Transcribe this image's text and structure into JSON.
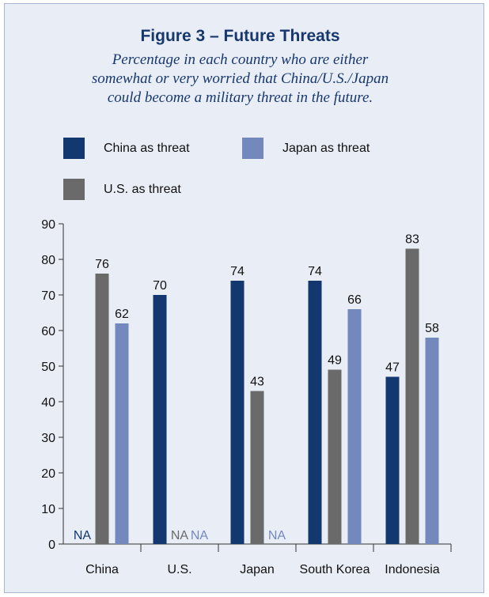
{
  "title": "Figure 3 – Future Threats",
  "subtitle": [
    "Percentage in each country who are either",
    "somewhat or very worried that China/U.S./Japan",
    "could become a military threat in the future."
  ],
  "colors": {
    "china_threat": "#12386f",
    "us_threat": "#6a6a6a",
    "japan_threat": "#7388bd",
    "panel_bg": "#e9edf6",
    "text_dark": "#17386d"
  },
  "legend": [
    {
      "key": "china",
      "label": "China as threat",
      "color": "#12386f"
    },
    {
      "key": "japan",
      "label": "Japan as threat",
      "color": "#7388bd"
    },
    {
      "key": "us",
      "label": "U.S. as threat",
      "color": "#6a6a6a"
    }
  ],
  "chart_data": {
    "type": "bar",
    "categories": [
      "China",
      "U.S.",
      "Japan",
      "South Korea",
      "Indonesia"
    ],
    "series": [
      {
        "name": "China as threat",
        "color": "#12386f",
        "values": [
          null,
          70,
          74,
          74,
          47
        ]
      },
      {
        "name": "U.S. as threat",
        "color": "#6a6a6a",
        "values": [
          76,
          null,
          43,
          49,
          83
        ]
      },
      {
        "name": "Japan as threat",
        "color": "#7388bd",
        "values": [
          62,
          null,
          null,
          66,
          58
        ]
      }
    ],
    "na_label": "NA",
    "ylim": [
      0,
      90
    ],
    "yticks": [
      0,
      10,
      20,
      30,
      40,
      50,
      60,
      70,
      80,
      90
    ],
    "grid": false,
    "legend_position": "top"
  }
}
